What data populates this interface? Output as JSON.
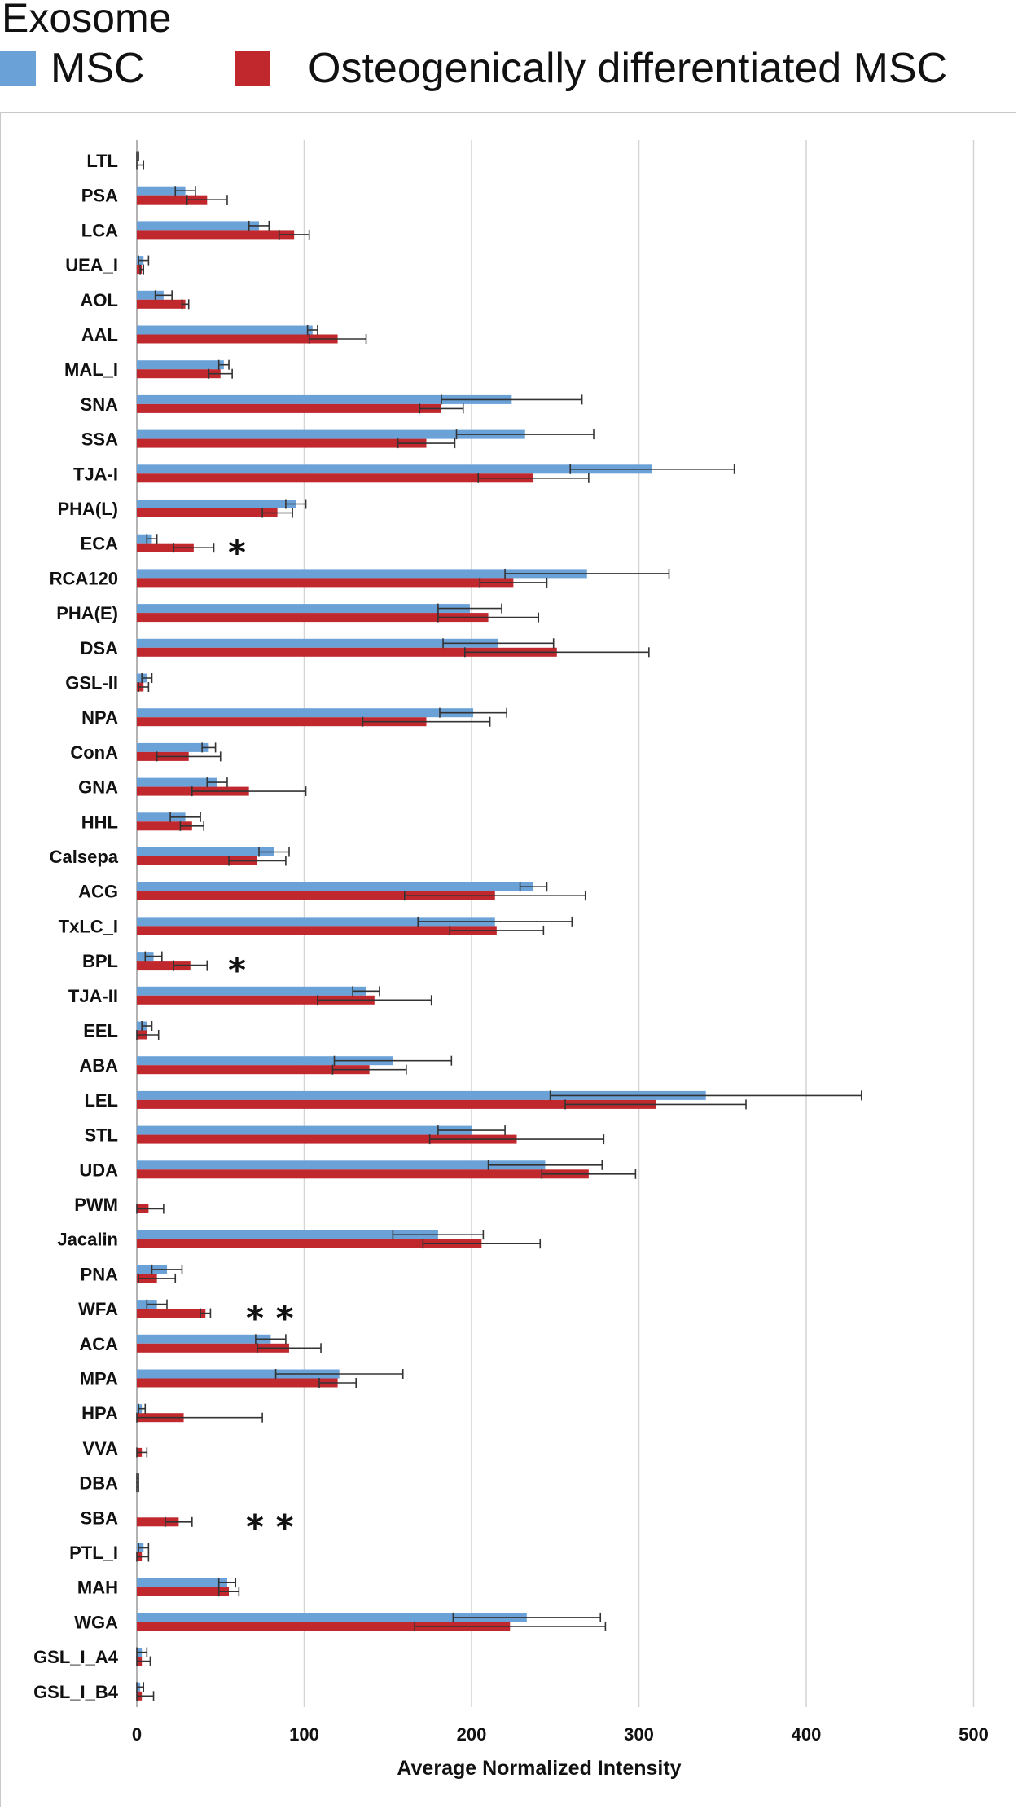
{
  "header": {
    "title": "Exosome"
  },
  "legend": [
    {
      "label": "MSC",
      "color": "#6aa2d8"
    },
    {
      "label": "Osteogenically differentiated MSC",
      "color": "#c0282d"
    }
  ],
  "chart_data": {
    "type": "bar",
    "orientation": "horizontal",
    "title": "Exosome",
    "xlabel": "Average Normalized Intensity",
    "ylabel": "",
    "xlim": [
      0,
      500
    ],
    "xticks": [
      0,
      100,
      200,
      300,
      400,
      500
    ],
    "grid": true,
    "legend_position": "top",
    "categories": [
      "LTL",
      "PSA",
      "LCA",
      "UEA_I",
      "AOL",
      "AAL",
      "MAL_I",
      "SNA",
      "SSA",
      "TJA-I",
      "PHA(L)",
      "ECA",
      "RCA120",
      "PHA(E)",
      "DSA",
      "GSL-II",
      "NPA",
      "ConA",
      "GNA",
      "HHL",
      "Calsepa",
      "ACG",
      "TxLC_I",
      "BPL",
      "TJA-II",
      "EEL",
      "ABA",
      "LEL",
      "STL",
      "UDA",
      "PWM",
      "Jacalin",
      "PNA",
      "WFA",
      "ACA",
      "MPA",
      "HPA",
      "VVA",
      "DBA",
      "SBA",
      "PTL_I",
      "MAH",
      "WGA",
      "GSL_I_A4",
      "GSL_I_B4"
    ],
    "series": [
      {
        "name": "MSC",
        "color": "#6aa2d8",
        "values": [
          0,
          29,
          73,
          4,
          16,
          105,
          52,
          224,
          232,
          308,
          95,
          9,
          269,
          199,
          216,
          6,
          201,
          43,
          48,
          29,
          82,
          237,
          214,
          10,
          137,
          6,
          153,
          340,
          200,
          244,
          0,
          180,
          18,
          12,
          80,
          121,
          3,
          0,
          0,
          0,
          4,
          54,
          233,
          3,
          2
        ],
        "errors": [
          1,
          6,
          6,
          3,
          5,
          3,
          3,
          42,
          41,
          49,
          6,
          3,
          49,
          19,
          33,
          3,
          20,
          4,
          6,
          9,
          9,
          8,
          46,
          5,
          8,
          3,
          35,
          93,
          20,
          34,
          0,
          27,
          9,
          6,
          9,
          38,
          2,
          0,
          1,
          0,
          3,
          5,
          44,
          3,
          2
        ]
      },
      {
        "name": "Osteogenically differentiated MSC",
        "color": "#c0282d",
        "values": [
          0,
          42,
          94,
          3,
          29,
          120,
          50,
          182,
          173,
          237,
          84,
          34,
          225,
          210,
          251,
          4,
          173,
          31,
          67,
          33,
          72,
          214,
          215,
          32,
          142,
          6,
          139,
          310,
          227,
          270,
          7,
          206,
          12,
          41,
          91,
          120,
          28,
          3,
          0,
          25,
          3,
          55,
          223,
          3,
          3
        ],
        "errors": [
          4,
          12,
          9,
          1,
          2,
          17,
          7,
          13,
          17,
          33,
          9,
          12,
          20,
          30,
          55,
          3,
          38,
          19,
          34,
          7,
          17,
          54,
          28,
          10,
          34,
          7,
          22,
          54,
          52,
          28,
          9,
          35,
          11,
          3,
          19,
          11,
          47,
          3,
          1,
          8,
          4,
          6,
          57,
          5,
          7
        ]
      }
    ],
    "significance": [
      {
        "category": "ECA",
        "label": "*"
      },
      {
        "category": "BPL",
        "label": "*"
      },
      {
        "category": "WFA",
        "label": "* *"
      },
      {
        "category": "SBA",
        "label": "* *"
      }
    ]
  }
}
